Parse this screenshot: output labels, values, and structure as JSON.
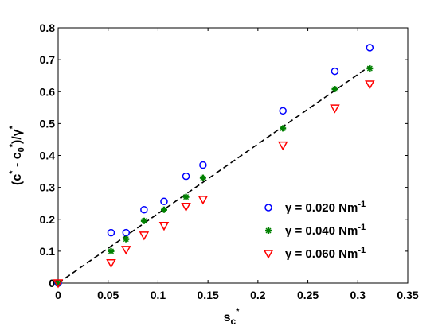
{
  "chart_data": {
    "type": "scatter",
    "xlabel_main": "s",
    "xlabel_sup": "*",
    "xlabel_sub": "c",
    "ylabel_parts": [
      "(c",
      "*",
      " - c",
      "0",
      "*",
      ")/",
      "γ",
      "*"
    ],
    "xlim": [
      0,
      0.35
    ],
    "ylim": [
      0,
      0.8
    ],
    "xticks": [
      "0",
      "0.05",
      "0.1",
      "0.15",
      "0.2",
      "0.25",
      "0.3",
      "0.35"
    ],
    "xtick_values": [
      0,
      0.05,
      0.1,
      0.15,
      0.2,
      0.25,
      0.3,
      0.35
    ],
    "yticks": [
      "0",
      "0.1",
      "0.2",
      "0.3",
      "0.4",
      "0.5",
      "0.6",
      "0.7",
      "0.8"
    ],
    "ytick_values": [
      0,
      0.1,
      0.2,
      0.3,
      0.4,
      0.5,
      0.6,
      0.7,
      0.8
    ],
    "grid": false,
    "legend_position": "bottom-right",
    "series": [
      {
        "name": "γ = 0.020 Nm",
        "name_sup": "-1",
        "marker": "circle",
        "color": "#0000ff",
        "x": [
          0,
          0.053,
          0.068,
          0.086,
          0.106,
          0.128,
          0.145,
          0.225,
          0.277,
          0.312
        ],
        "y": [
          0,
          0.158,
          0.158,
          0.23,
          0.256,
          0.335,
          0.37,
          0.54,
          0.664,
          0.738
        ]
      },
      {
        "name": "γ = 0.040 Nm",
        "name_sup": "-1",
        "marker": "plus",
        "color": "#008000",
        "x": [
          0,
          0.053,
          0.068,
          0.086,
          0.106,
          0.128,
          0.145,
          0.225,
          0.277,
          0.312
        ],
        "y": [
          0,
          0.1,
          0.138,
          0.195,
          0.23,
          0.27,
          0.33,
          0.485,
          0.608,
          0.673
        ]
      },
      {
        "name": "γ = 0.060 Nm",
        "name_sup": "-1",
        "marker": "triangle-down",
        "color": "#ff0000",
        "x": [
          0,
          0.053,
          0.068,
          0.086,
          0.106,
          0.128,
          0.145,
          0.225,
          0.277,
          0.312
        ],
        "y": [
          0,
          0.063,
          0.105,
          0.15,
          0.18,
          0.24,
          0.262,
          0.432,
          0.548,
          0.623
        ]
      }
    ],
    "fit_line": {
      "style": "dashed",
      "color": "#000000",
      "x": [
        0,
        0.312
      ],
      "y": [
        0,
        0.68
      ]
    }
  }
}
